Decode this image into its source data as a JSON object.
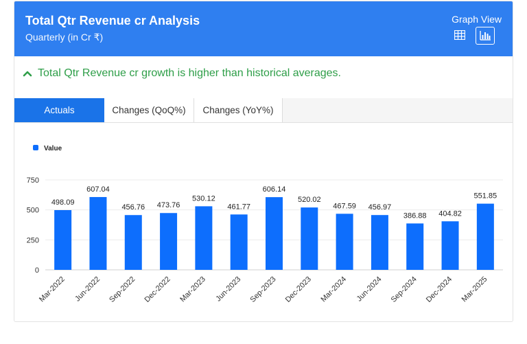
{
  "header": {
    "title": "Total Qtr Revenue cr Analysis",
    "subtitle": "Quarterly (in Cr ₹)",
    "graph_view_label": "Graph View",
    "table_icon": "table-icon",
    "graph_icon": "bar-chart-icon"
  },
  "insight": {
    "text": "Total Qtr Revenue cr growth is higher than historical averages.",
    "icon": "chevron-up-icon",
    "color": "#2e9e48"
  },
  "tabs": [
    {
      "label": "Actuals",
      "active": true
    },
    {
      "label": "Changes (QoQ%)",
      "active": false
    },
    {
      "label": "Changes (YoY%)",
      "active": false
    }
  ],
  "colors": {
    "header_bg": "#2f7ff0",
    "bar": "#0d6efd",
    "active_tab": "#1a73e8"
  },
  "chart_data": {
    "type": "bar",
    "legend_placement": "top-left",
    "grid": true,
    "categories": [
      "Mar-2022",
      "Jun-2022",
      "Sep-2022",
      "Dec-2022",
      "Mar-2023",
      "Jun-2023",
      "Sep-2023",
      "Dec-2023",
      "Mar-2024",
      "Jun-2024",
      "Sep-2024",
      "Dec-2024",
      "Mar-2025"
    ],
    "series": [
      {
        "name": "Value",
        "values": [
          498.09,
          607.04,
          456.76,
          473.76,
          530.12,
          461.77,
          606.14,
          520.02,
          467.59,
          456.97,
          386.88,
          404.82,
          551.85
        ]
      }
    ],
    "y_ticks": [
      0,
      250,
      500,
      750
    ],
    "ylim": [
      0,
      750
    ]
  }
}
